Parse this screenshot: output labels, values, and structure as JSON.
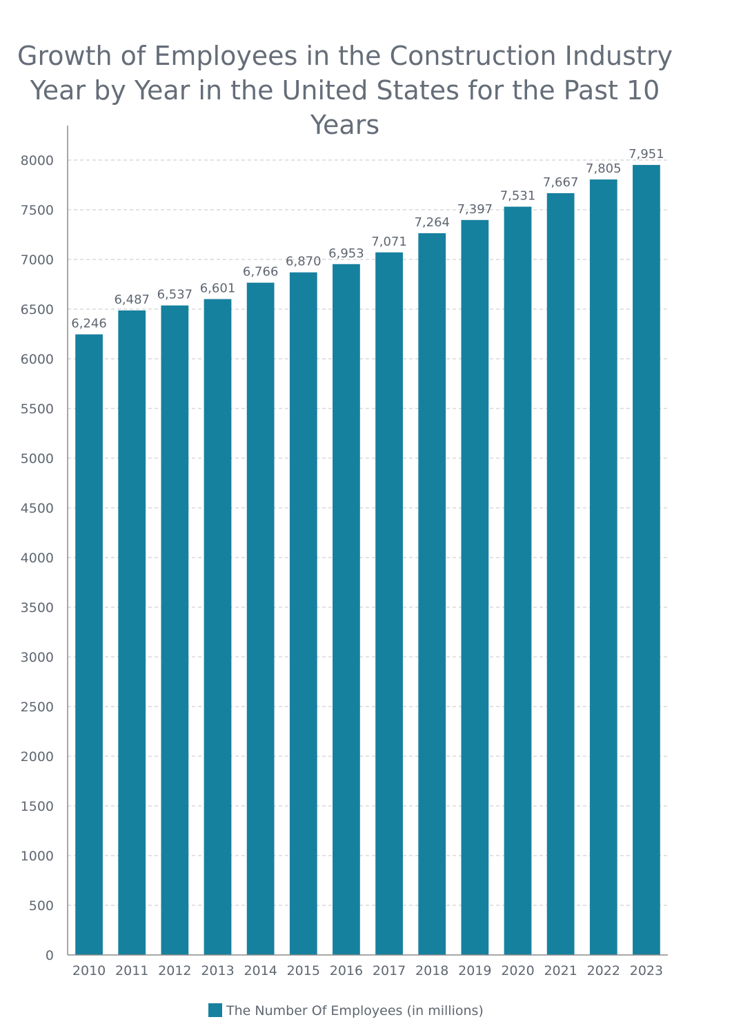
{
  "chart_data": {
    "type": "bar",
    "title": "Growth of Employees in the Construction Industry Year by Year in the United States for the Past 10 Years",
    "categories": [
      "2010",
      "2011",
      "2012",
      "2013",
      "2014",
      "2015",
      "2016",
      "2017",
      "2018",
      "2019",
      "2020",
      "2021",
      "2022",
      "2023"
    ],
    "series": [
      {
        "name": "The Number Of Employees (in millions)",
        "values": [
          6246,
          6487,
          6537,
          6601,
          6766,
          6870,
          6953,
          7071,
          7264,
          7397,
          7531,
          7667,
          7805,
          7951
        ],
        "data_labels": [
          "6,246",
          "6,487",
          "6,537",
          "6,601",
          "6,766",
          "6,870",
          "6,953",
          "7,071",
          "7,264",
          "7,397",
          "7,531",
          "7,667",
          "7,805",
          "7,951"
        ],
        "color": "#16819e"
      }
    ],
    "xlabel": "",
    "ylabel": "",
    "ylim": [
      0,
      8000
    ],
    "yticks": [
      "0",
      "500",
      "1000",
      "1500",
      "2000",
      "2500",
      "3000",
      "3500",
      "4000",
      "4500",
      "5000",
      "5500",
      "6000",
      "6500",
      "7000",
      "7500",
      "8000"
    ],
    "grid": true,
    "grid_style": "dashed",
    "legend_position": "bottom"
  },
  "colors": {
    "bar": "#16819e",
    "text": "#5f6670",
    "title": "#656d78",
    "grid": "#c4c4c4",
    "axis": "#8a8a8a"
  }
}
